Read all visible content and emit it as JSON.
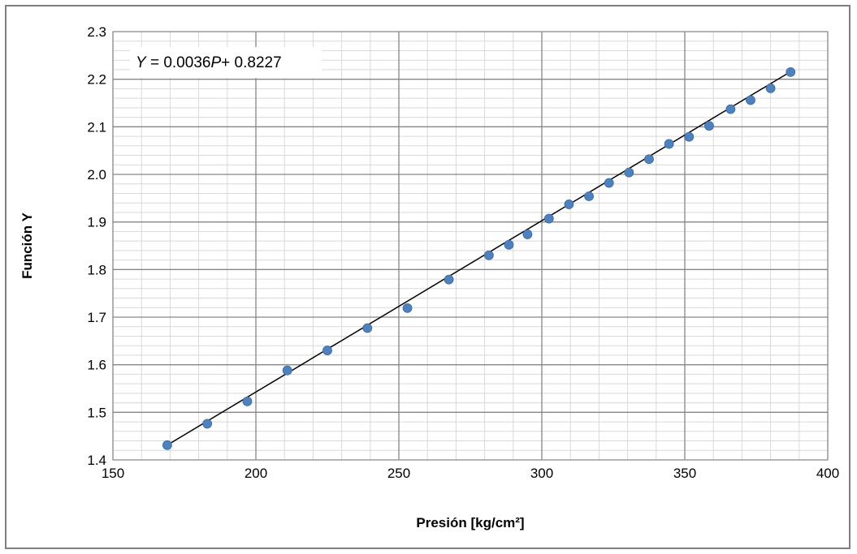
{
  "chart_data": {
    "type": "scatter",
    "title": "",
    "xlabel": "Presión [kg/cm²]",
    "ylabel": "Función Y",
    "xlim": [
      150,
      400
    ],
    "ylim": [
      1.4,
      2.3
    ],
    "x_major_ticks": [
      150,
      200,
      250,
      300,
      350,
      400
    ],
    "x_tick_labels": [
      "150",
      "200",
      "250",
      "300",
      "350",
      "400"
    ],
    "y_major_ticks": [
      1.4,
      1.5,
      1.6,
      1.7,
      1.8,
      1.9,
      2.0,
      2.1,
      2.2,
      2.3
    ],
    "y_tick_labels": [
      "1.4",
      "1.5",
      "1.6",
      "1.7",
      "1.8",
      "1.9",
      "2.0",
      "2.1",
      "2.2",
      "2.3"
    ],
    "x_minor_step": 10,
    "y_minor_step": 0.02,
    "grid": true,
    "legend": "none",
    "series": [
      {
        "marker_color": "#4f81bd",
        "points": [
          [
            169,
            1.431
          ],
          [
            183,
            1.476
          ],
          [
            197,
            1.523
          ],
          [
            211,
            1.588
          ],
          [
            225,
            1.63
          ],
          [
            239,
            1.677
          ],
          [
            253,
            1.719
          ],
          [
            267.5,
            1.779
          ],
          [
            281.5,
            1.83
          ],
          [
            288.5,
            1.852
          ],
          [
            295,
            1.874
          ],
          [
            302.5,
            1.907
          ],
          [
            309.5,
            1.937
          ],
          [
            316.5,
            1.954
          ],
          [
            323.5,
            1.982
          ],
          [
            330.5,
            2.004
          ],
          [
            337.5,
            2.032
          ],
          [
            344.5,
            2.064
          ],
          [
            351.5,
            2.079
          ],
          [
            358.5,
            2.102
          ],
          [
            366,
            2.137
          ],
          [
            373,
            2.156
          ],
          [
            380,
            2.181
          ],
          [
            387,
            2.215
          ]
        ]
      }
    ],
    "trendline": {
      "type": "linear",
      "slope": 0.0036,
      "intercept": 0.8227,
      "x_range": [
        169,
        387
      ],
      "color": "#000000"
    },
    "equation_label": {
      "var": "Y",
      "mid": " = 0.0036",
      "var2": "P",
      "rest": "+ 0.8227"
    }
  }
}
